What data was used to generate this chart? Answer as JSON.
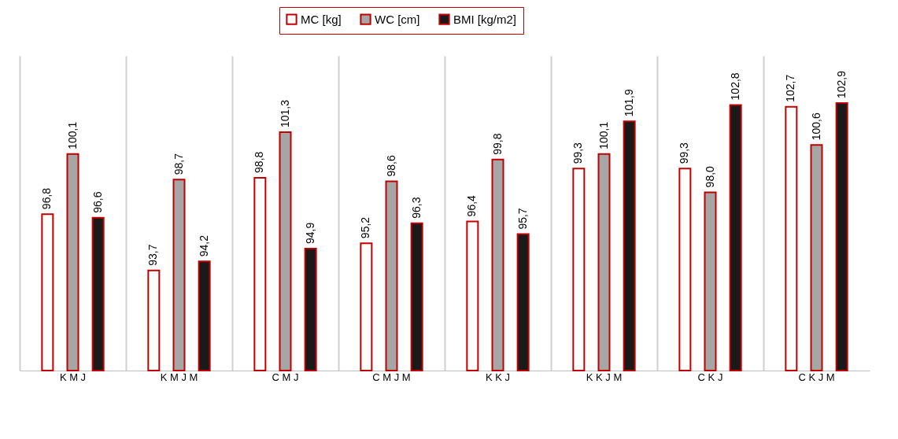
{
  "chart_data": {
    "type": "bar",
    "categories": [
      "K M J",
      "K M J M",
      "C M J",
      "C M J M",
      "K K J",
      "K K J M",
      "C K J",
      "C K J M"
    ],
    "series": [
      {
        "name": "MC [kg]",
        "color": "#ffffff",
        "values": [
          96.8,
          93.7,
          98.8,
          95.2,
          96.4,
          99.3,
          99.3,
          102.7
        ],
        "value_labels": [
          "96,8",
          "93,7",
          "98,8",
          "95,2",
          "96,4",
          "99,3",
          "99,3",
          "102,7"
        ]
      },
      {
        "name": "WC [cm]",
        "color": "#a6a6a6",
        "values": [
          100.1,
          98.7,
          101.3,
          98.6,
          99.8,
          100.1,
          98.0,
          100.6
        ],
        "value_labels": [
          "100,1",
          "98,7",
          "101,3",
          "98,6",
          "99,8",
          "100,1",
          "98,0",
          "100,6"
        ]
      },
      {
        "name": "BMI [kg/m2]",
        "color": "#1a1a1a",
        "values": [
          96.6,
          94.2,
          94.9,
          96.3,
          95.7,
          101.9,
          102.8,
          102.9
        ],
        "value_labels": [
          "96,6",
          "94,2",
          "94,9",
          "96,3",
          "95,7",
          "101,9",
          "102,8",
          "102,9"
        ]
      }
    ],
    "ylim": [
      88.2,
      105.5
    ],
    "tick_labels": "x",
    "grid": "x",
    "legend": "top"
  }
}
